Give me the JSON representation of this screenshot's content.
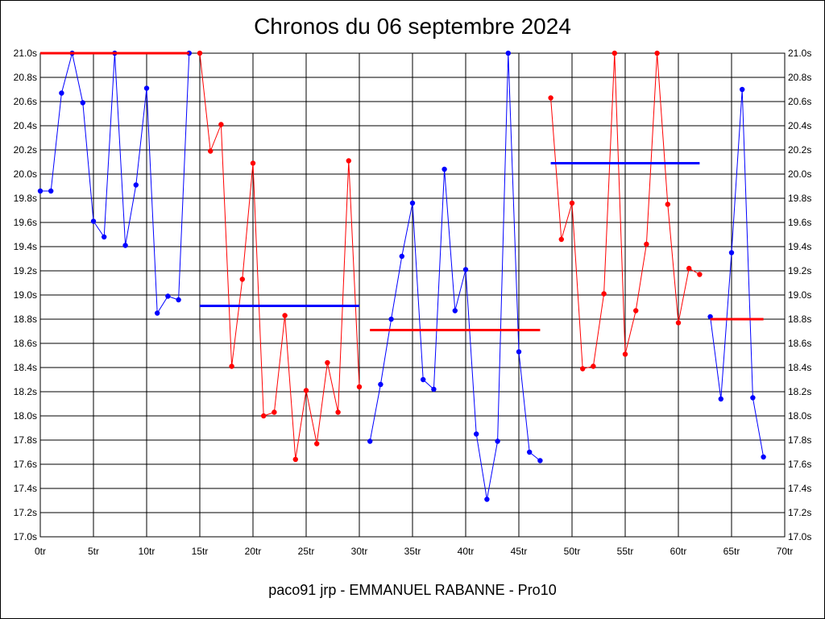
{
  "window": {
    "title": "Chronos du 06 septembre 2024"
  },
  "chart_data": {
    "type": "line",
    "title": "Chronos du 06 septembre 2024",
    "subtitle": "paco91 jrp - EMMANUEL RABANNE - Pro10",
    "xlabel": "",
    "ylabel": "",
    "xlim": [
      0,
      70
    ],
    "ylim": [
      17.0,
      21.0
    ],
    "grid": true,
    "x_ticks": [
      0,
      5,
      10,
      15,
      20,
      25,
      30,
      35,
      40,
      45,
      50,
      55,
      60,
      65,
      70
    ],
    "x_tick_labels": [
      "0tr",
      "5tr",
      "10tr",
      "15tr",
      "20tr",
      "25tr",
      "30tr",
      "35tr",
      "40tr",
      "45tr",
      "50tr",
      "55tr",
      "60tr",
      "65tr",
      "70tr"
    ],
    "y_ticks": [
      17.0,
      17.2,
      17.4,
      17.6,
      17.8,
      18.0,
      18.2,
      18.4,
      18.6,
      18.8,
      19.0,
      19.2,
      19.4,
      19.6,
      19.8,
      20.0,
      20.2,
      20.4,
      20.6,
      20.8,
      21.0
    ],
    "y_tick_labels": [
      "17.0s",
      "17.2s",
      "17.4s",
      "17.6s",
      "17.8s",
      "18.0s",
      "18.2s",
      "18.4s",
      "18.6s",
      "18.8s",
      "19.0s",
      "19.2s",
      "19.4s",
      "19.6s",
      "19.8s",
      "20.0s",
      "20.2s",
      "20.4s",
      "20.6s",
      "20.8s",
      "21.0s"
    ],
    "series": [
      {
        "color": "#0000ff",
        "x": [
          0,
          1,
          2,
          3,
          4,
          5,
          6,
          7,
          8,
          9,
          10,
          11,
          12,
          13,
          14
        ],
        "values": [
          19.86,
          19.86,
          20.67,
          21.0,
          20.59,
          19.61,
          19.48,
          21.0,
          19.41,
          19.91,
          20.71,
          18.85,
          18.99,
          18.96,
          21.0
        ]
      },
      {
        "color": "#ff0000",
        "x": [
          15,
          16,
          17,
          18,
          19,
          20,
          21,
          22,
          23,
          24,
          25,
          26,
          27,
          28,
          29,
          30
        ],
        "values": [
          21.0,
          20.19,
          20.41,
          18.41,
          19.13,
          20.09,
          18.0,
          18.03,
          18.83,
          17.64,
          18.21,
          17.77,
          18.44,
          18.03,
          20.11,
          18.24
        ]
      },
      {
        "color": "#0000ff",
        "x": [
          31,
          32,
          33,
          34,
          35,
          36,
          37,
          38,
          39,
          40,
          41,
          42,
          43,
          44,
          45,
          46,
          47
        ],
        "values": [
          17.79,
          18.26,
          18.8,
          19.32,
          19.76,
          18.3,
          18.22,
          20.04,
          18.87,
          19.21,
          17.85,
          17.31,
          17.79,
          21.0,
          18.53,
          17.7,
          17.63
        ]
      },
      {
        "color": "#ff0000",
        "x": [
          48,
          49,
          50,
          51,
          52,
          53,
          54,
          55,
          56,
          57,
          58,
          59,
          60,
          61,
          62
        ],
        "values": [
          20.63,
          19.46,
          19.76,
          18.39,
          18.41,
          19.01,
          21.0,
          18.51,
          18.87,
          19.42,
          21.0,
          19.75,
          18.77,
          19.22,
          19.17
        ]
      },
      {
        "color": "#0000ff",
        "x": [
          63,
          64,
          65,
          66,
          67,
          68
        ],
        "values": [
          18.82,
          18.14,
          19.35,
          20.7,
          18.15,
          17.66
        ]
      }
    ],
    "averages": [
      {
        "color": "#ff0000",
        "x_start": 0,
        "x_end": 14,
        "value": 21.0
      },
      {
        "color": "#0000ff",
        "x_start": 15,
        "x_end": 30,
        "value": 18.91
      },
      {
        "color": "#ff0000",
        "x_start": 31,
        "x_end": 47,
        "value": 18.71
      },
      {
        "color": "#0000ff",
        "x_start": 48,
        "x_end": 62,
        "value": 20.09
      },
      {
        "color": "#ff0000",
        "x_start": 63,
        "x_end": 68,
        "value": 18.8
      }
    ]
  }
}
